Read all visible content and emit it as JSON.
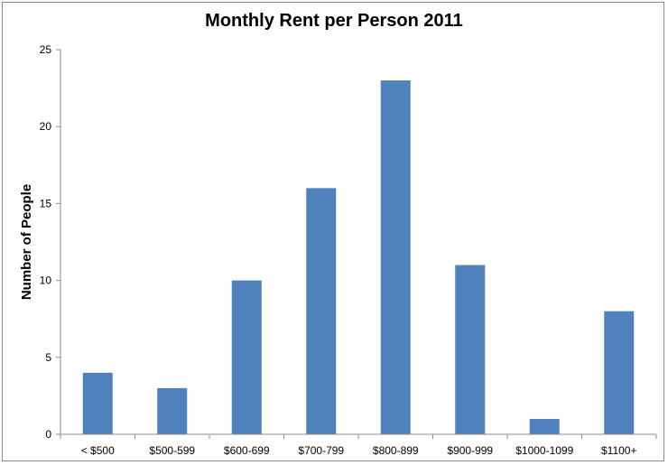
{
  "chart_data": {
    "type": "bar",
    "title": "Monthly Rent per Person 2011",
    "xlabel": "",
    "ylabel": "Number of People",
    "categories": [
      "< $500",
      "$500-599",
      "$600-699",
      "$700-799",
      "$800-899",
      "$900-999",
      "$1000-1099",
      "$1100+"
    ],
    "values": [
      4,
      3,
      10,
      16,
      23,
      11,
      1,
      8
    ],
    "ylim": [
      0,
      25
    ],
    "yticks": [
      0,
      5,
      10,
      15,
      20,
      25
    ],
    "grid": false,
    "legend": "none",
    "bar_color": "#4f81bd",
    "axis_color": "#8c8c8c"
  }
}
